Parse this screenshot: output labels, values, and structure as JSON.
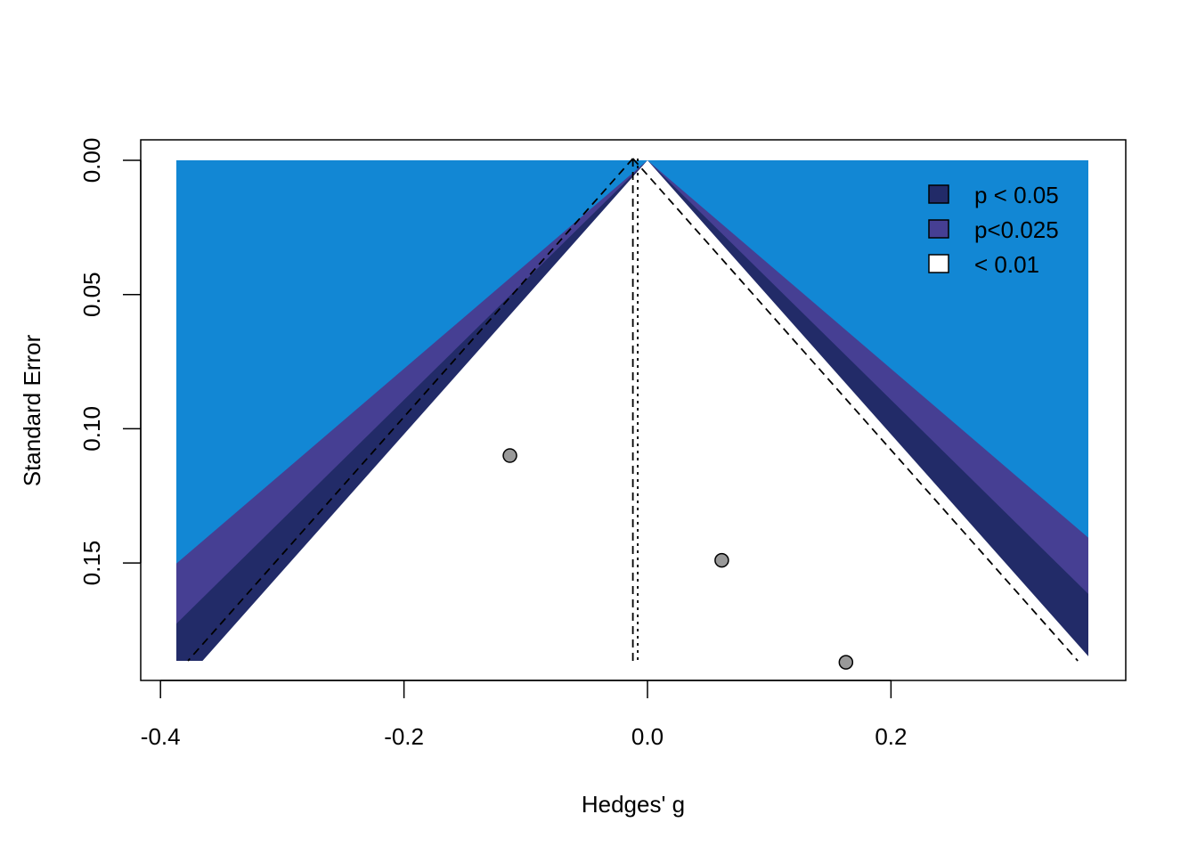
{
  "chart_data": {
    "type": "scatter",
    "subtype": "contour-enhanced funnel plot",
    "xlabel": "Hedges' g",
    "ylabel": "Standard Error",
    "xlim": [
      -0.39,
      0.36
    ],
    "ylim_reversed": [
      0.185,
      0.0
    ],
    "x_ticks": [
      -0.4,
      -0.2,
      0.0,
      0.2
    ],
    "x_tick_labels": [
      "-0.4",
      "-0.2",
      "0.0",
      "0.2"
    ],
    "y_ticks": [
      0.0,
      0.05,
      0.1,
      0.15
    ],
    "y_tick_labels": [
      "0.00",
      "0.05",
      "0.10",
      "0.15"
    ],
    "grid": false,
    "legend_position": "top-right",
    "legend": [
      {
        "label": "p < 0.05",
        "color": "#222b68"
      },
      {
        "label": "p<0.025",
        "color": "#463f93"
      },
      {
        "label": "< 0.01",
        "color": "#ffffff"
      }
    ],
    "background_color": "#1287d4",
    "contours": [
      {
        "level": "p < 0.05",
        "z": 1.959964,
        "color": "#222b68"
      },
      {
        "level": "p<0.025",
        "z": 2.241403,
        "color": "#463f93"
      },
      {
        "level": "< 0.01",
        "z": 2.575829,
        "color": "#1287d4"
      }
    ],
    "reference_lines": [
      {
        "style": "dashed",
        "x": -0.012,
        "funnel": true
      },
      {
        "style": "dotted",
        "x": -0.008,
        "funnel": false
      }
    ],
    "points": [
      {
        "x": -0.113,
        "y": 0.11
      },
      {
        "x": 0.061,
        "y": 0.149
      },
      {
        "x": 0.163,
        "y": 0.187
      }
    ],
    "point_color": "#999999"
  }
}
